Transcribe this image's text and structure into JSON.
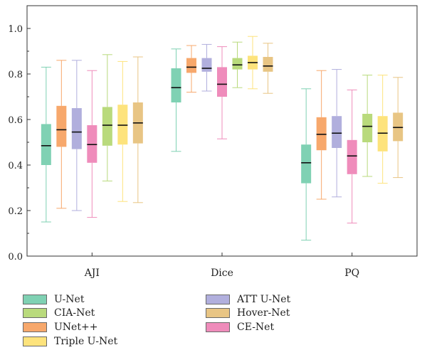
{
  "chart_data": {
    "type": "box",
    "categories": [
      "AJI",
      "Dice",
      "PQ"
    ],
    "ylim": [
      0,
      1.1
    ],
    "y_ticks": [
      "0.0",
      "0.2",
      "0.4",
      "0.6",
      "0.8",
      "1.0"
    ],
    "y_tick_values": [
      0,
      0.2,
      0.4,
      0.6,
      0.8,
      1.0
    ],
    "legend_position": "bottom, two columns",
    "series": [
      {
        "name": "U-Net",
        "color": "#7fd1b3",
        "boxes": [
          {
            "min": 0.15,
            "q1": 0.4,
            "median": 0.485,
            "q3": 0.58,
            "max": 0.83
          },
          {
            "min": 0.46,
            "q1": 0.675,
            "median": 0.74,
            "q3": 0.825,
            "max": 0.91
          },
          {
            "min": 0.07,
            "q1": 0.32,
            "median": 0.41,
            "q3": 0.49,
            "max": 0.735
          }
        ]
      },
      {
        "name": "UNet++",
        "color": "#f7a86c",
        "boxes": [
          {
            "min": 0.21,
            "q1": 0.48,
            "median": 0.555,
            "q3": 0.66,
            "max": 0.86
          },
          {
            "min": 0.72,
            "q1": 0.805,
            "median": 0.83,
            "q3": 0.87,
            "max": 0.925
          },
          {
            "min": 0.25,
            "q1": 0.465,
            "median": 0.535,
            "q3": 0.61,
            "max": 0.815
          }
        ]
      },
      {
        "name": "ATT U-Net",
        "color": "#b1afdd",
        "boxes": [
          {
            "min": 0.2,
            "q1": 0.47,
            "median": 0.545,
            "q3": 0.65,
            "max": 0.86
          },
          {
            "min": 0.725,
            "q1": 0.81,
            "median": 0.825,
            "q3": 0.87,
            "max": 0.93
          },
          {
            "min": 0.26,
            "q1": 0.475,
            "median": 0.54,
            "q3": 0.615,
            "max": 0.82
          }
        ]
      },
      {
        "name": "CE-Net",
        "color": "#ef8cbb",
        "boxes": [
          {
            "min": 0.17,
            "q1": 0.41,
            "median": 0.49,
            "q3": 0.575,
            "max": 0.815
          },
          {
            "min": 0.515,
            "q1": 0.7,
            "median": 0.755,
            "q3": 0.83,
            "max": 0.92
          },
          {
            "min": 0.145,
            "q1": 0.36,
            "median": 0.44,
            "q3": 0.51,
            "max": 0.73
          }
        ]
      },
      {
        "name": "CIA-Net",
        "color": "#b9da7c",
        "boxes": [
          {
            "min": 0.33,
            "q1": 0.485,
            "median": 0.575,
            "q3": 0.655,
            "max": 0.885
          },
          {
            "min": 0.74,
            "q1": 0.82,
            "median": 0.84,
            "q3": 0.87,
            "max": 0.94
          },
          {
            "min": 0.35,
            "q1": 0.5,
            "median": 0.57,
            "q3": 0.625,
            "max": 0.795
          }
        ]
      },
      {
        "name": "Triple U-Net",
        "color": "#fde37c",
        "boxes": [
          {
            "min": 0.24,
            "q1": 0.49,
            "median": 0.575,
            "q3": 0.665,
            "max": 0.855
          },
          {
            "min": 0.735,
            "q1": 0.82,
            "median": 0.85,
            "q3": 0.88,
            "max": 0.965
          },
          {
            "min": 0.32,
            "q1": 0.46,
            "median": 0.54,
            "q3": 0.615,
            "max": 0.795
          }
        ]
      },
      {
        "name": "Hover-Net",
        "color": "#e8c584",
        "boxes": [
          {
            "min": 0.235,
            "q1": 0.495,
            "median": 0.585,
            "q3": 0.675,
            "max": 0.875
          },
          {
            "min": 0.715,
            "q1": 0.81,
            "median": 0.835,
            "q3": 0.875,
            "max": 0.935
          },
          {
            "min": 0.345,
            "q1": 0.505,
            "median": 0.565,
            "q3": 0.63,
            "max": 0.785
          }
        ]
      }
    ]
  },
  "legend": {
    "items": [
      {
        "label": "U-Net",
        "color": "#7fd1b3"
      },
      {
        "label": "CIA-Net",
        "color": "#b9da7c"
      },
      {
        "label": "UNet++",
        "color": "#f7a86c"
      },
      {
        "label": "Triple U-Net",
        "color": "#fde37c"
      },
      {
        "label": "ATT U-Net",
        "color": "#b1afdd"
      },
      {
        "label": "Hover-Net",
        "color": "#e8c584"
      },
      {
        "label": "CE-Net",
        "color": "#ef8cbb"
      }
    ]
  }
}
